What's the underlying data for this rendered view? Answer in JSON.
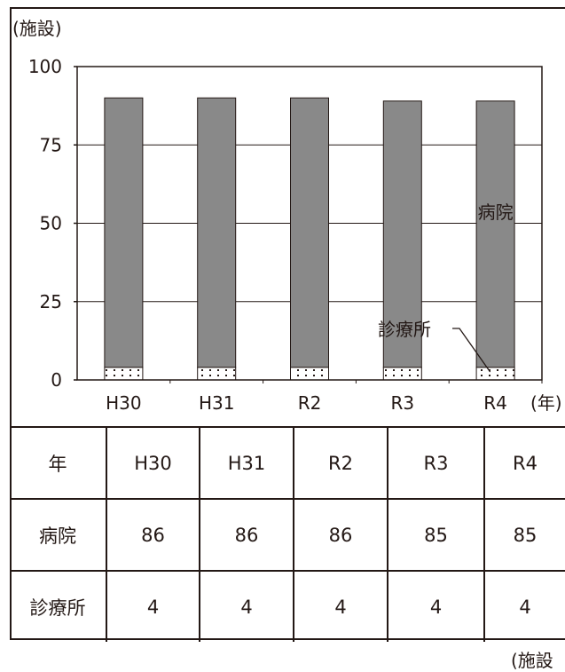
{
  "chart_data": {
    "type": "bar",
    "stacked": true,
    "y_unit_label": "(施設)",
    "x_unit_label": "(年)",
    "categories": [
      "H30",
      "H31",
      "R2",
      "R3",
      "R4"
    ],
    "series": [
      {
        "name": "診療所",
        "values": [
          4,
          4,
          4,
          4,
          4
        ],
        "pattern": "dotted"
      },
      {
        "name": "病院",
        "values": [
          86,
          86,
          86,
          85,
          85
        ],
        "color": "#898989"
      }
    ],
    "ylim": [
      0,
      100
    ],
    "yticks": [
      0,
      25,
      50,
      75,
      100
    ],
    "grid": true
  },
  "table": {
    "header_label": "年",
    "columns": [
      "H30",
      "H31",
      "R2",
      "R3",
      "R4"
    ],
    "rows": [
      {
        "label": "病院",
        "values": [
          "86",
          "86",
          "86",
          "85",
          "85"
        ]
      },
      {
        "label": "診療所",
        "values": [
          "4",
          "4",
          "4",
          "4",
          "4"
        ]
      }
    ]
  },
  "unit_note": "(施設"
}
